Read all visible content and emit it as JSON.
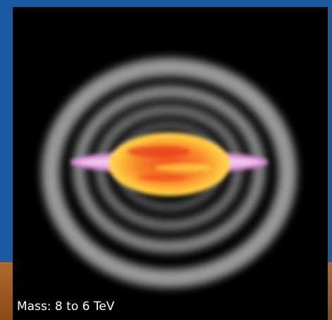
{
  "caption": "Mass: 8 to 6 TeV"
}
